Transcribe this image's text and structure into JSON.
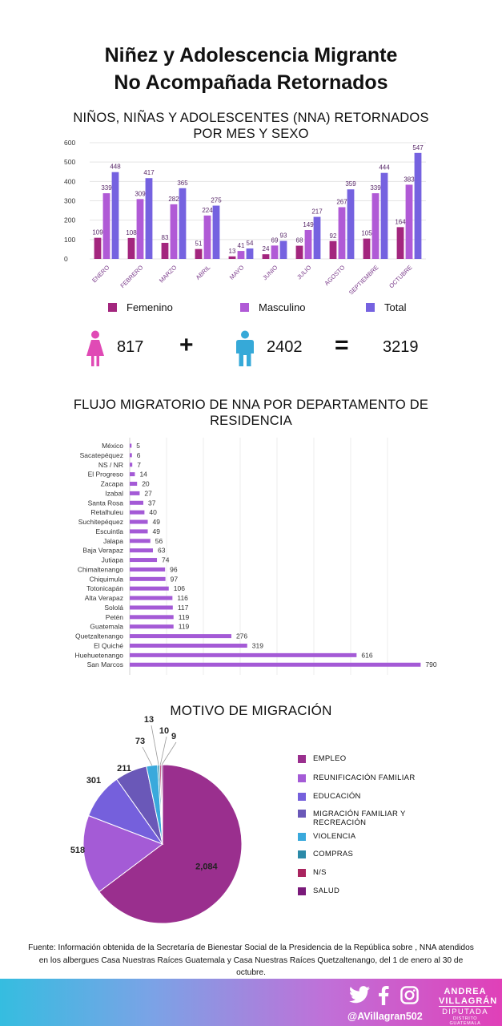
{
  "title": {
    "line1": "Niñez y Adolescencia Migrante",
    "line2": "No Acompañada Retornados"
  },
  "colors": {
    "femenino": "#a3267e",
    "masculino": "#b05ad6",
    "total": "#7562e0",
    "bar_flow": "#a45ad6",
    "female_icon": "#e04ab5",
    "male_icon": "#36a9d8"
  },
  "bar_section": {
    "title_line1": "NIÑOS, NIÑAS Y ADOLESCENTES (NNA) RETORNADOS",
    "title_line2": "POR MES Y SEXO"
  },
  "sum": {
    "female": "817",
    "plus": "+",
    "male": "2402",
    "equals": "=",
    "total": "3219"
  },
  "flow_section": {
    "title_line1": "FLUJO MIGRATORIO DE NNA POR DEPARTAMENTO DE",
    "title_line2": "RESIDENCIA"
  },
  "motive_section": {
    "title": "MOTIVO DE MIGRACIÓN"
  },
  "chart_data": [
    {
      "type": "bar",
      "title": "NIÑOS, NIÑAS Y ADOLESCENTES (NNA) RETORNADOS POR MES Y SEXO",
      "categories": [
        "ENERO",
        "FEBRERO",
        "MARZO",
        "ABRIL",
        "MAYO",
        "JUNIO",
        "JULIO",
        "AGOSTO",
        "SEPTIEMBRE",
        "OCTUBRE"
      ],
      "series": [
        {
          "name": "Femenino",
          "values": [
            109,
            108,
            83,
            51,
            13,
            24,
            68,
            92,
            105,
            164
          ]
        },
        {
          "name": "Masculino",
          "values": [
            339,
            309,
            282,
            224,
            41,
            69,
            149,
            267,
            339,
            383
          ]
        },
        {
          "name": "Total",
          "values": [
            448,
            417,
            365,
            275,
            54,
            93,
            217,
            359,
            444,
            547
          ]
        }
      ],
      "ylim": [
        0,
        600
      ],
      "yticks": [
        "0",
        "100",
        "200",
        "300",
        "400",
        "500",
        "600"
      ],
      "legend": [
        "Femenino",
        "Masculino",
        "Total"
      ]
    },
    {
      "type": "bar",
      "orientation": "horizontal",
      "title": "FLUJO MIGRATORIO DE NNA POR DEPARTAMENTO DE RESIDENCIA",
      "categories": [
        "México",
        "Sacatepéquez",
        "NS / NR",
        "El Progreso",
        "Zacapa",
        "Izabal",
        "Santa Rosa",
        "Retalhuleu",
        "Suchitepéquez",
        "Escuintla",
        "Jalapa",
        "Baja Verapaz",
        "Jutiapa",
        "Chimaltenango",
        "Chiquimula",
        "Totonicapán",
        "Alta Verapaz",
        "Sololá",
        "Petén",
        "Guatemala",
        "Quetzaltenango",
        "El Quiché",
        "Huehuetenango",
        "San Marcos"
      ],
      "values": [
        5,
        6,
        7,
        14,
        20,
        27,
        37,
        40,
        49,
        49,
        56,
        63,
        74,
        96,
        97,
        106,
        116,
        117,
        119,
        119,
        276,
        319,
        616,
        790
      ],
      "xlim": [
        0,
        800
      ]
    },
    {
      "type": "pie",
      "title": "MOTIVO DE MIGRACIÓN",
      "labels": [
        "EMPLEO",
        "REUNIFICACIÓN FAMILIAR",
        "EDUCACIÓN",
        "MIGRACIÓN FAMILIAR Y RECREACIÓN",
        "VIOLENCIA",
        "COMPRAS",
        "N/S",
        "SALUD"
      ],
      "values": [
        2084,
        518,
        301,
        211,
        73,
        13,
        10,
        9
      ],
      "value_labels": [
        "2,084",
        "518",
        "301",
        "211",
        "73",
        "13",
        "10",
        "9"
      ],
      "colors": [
        "#9a2f8e",
        "#a45bd6",
        "#7560dc",
        "#6a58b8",
        "#3aa9dc",
        "#2b8aa8",
        "#a9245f",
        "#7a1a7a"
      ]
    }
  ],
  "footer": {
    "source": "Fuente: Información obtenida de la Secretaría de Bienestar Social de la Presidencia de la República sobre , NNA atendidos en los albergues Casa Nuestras Raíces Guatemala y Casa Nuestras Raíces Quetzaltenango, del 1 de enero al 30 de octubre.",
    "handle": "@AVillagran502",
    "brand_name": "ANDREA VILLAGRÁN",
    "brand_role": "DIPUTADA",
    "brand_sub": "DISTRITO GUATEMALA",
    "icons": [
      "twitter-icon",
      "facebook-icon",
      "instagram-icon"
    ]
  }
}
